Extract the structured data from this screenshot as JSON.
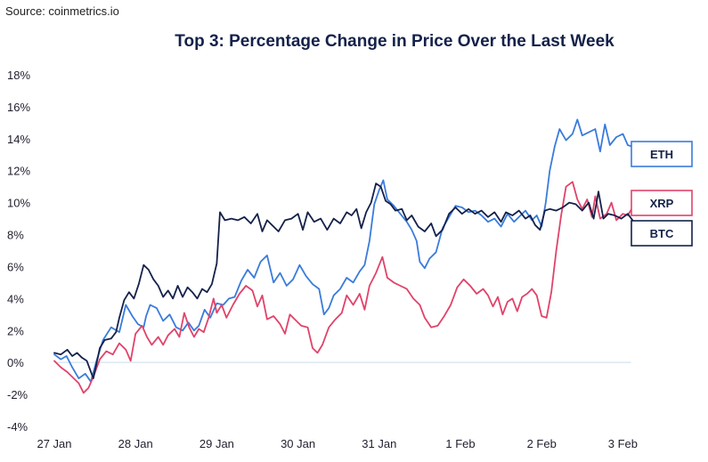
{
  "source": "Source: coinmetrics.io",
  "chart_data": {
    "type": "line",
    "title": "Top 3: Percentage Change in Price Over the Last Week",
    "xlabel": "",
    "ylabel": "",
    "x_ticks": [
      "27 Jan",
      "28 Jan",
      "29 Jan",
      "30 Jan",
      "31 Jan",
      "1 Feb",
      "2 Feb",
      "3 Feb"
    ],
    "xlim": [
      0,
      7.45
    ],
    "ylim": [
      -4,
      18
    ],
    "y_ticks": [
      -4,
      -2,
      0,
      2,
      4,
      6,
      8,
      10,
      12,
      14,
      16,
      18
    ],
    "y_tick_labels": [
      "-4%",
      "-2%",
      "0%",
      "2%",
      "4%",
      "6%",
      "8%",
      "10%",
      "12%",
      "14%",
      "16%",
      "18%"
    ],
    "grid": false,
    "legend": "right",
    "series": [
      {
        "name": "ETH",
        "color": "#3a7bdc",
        "points": [
          [
            0.0,
            0.5
          ],
          [
            0.08,
            0.2
          ],
          [
            0.15,
            0.4
          ],
          [
            0.22,
            -0.3
          ],
          [
            0.3,
            -1.0
          ],
          [
            0.38,
            -0.7
          ],
          [
            0.45,
            -1.2
          ],
          [
            0.52,
            0.1
          ],
          [
            0.6,
            1.4
          ],
          [
            0.7,
            2.2
          ],
          [
            0.8,
            1.9
          ],
          [
            0.88,
            3.6
          ],
          [
            0.96,
            2.9
          ],
          [
            1.03,
            2.4
          ],
          [
            1.1,
            2.2
          ],
          [
            1.13,
            2.9
          ],
          [
            1.18,
            3.6
          ],
          [
            1.26,
            3.4
          ],
          [
            1.34,
            2.6
          ],
          [
            1.42,
            3.0
          ],
          [
            1.5,
            2.2
          ],
          [
            1.58,
            2.0
          ],
          [
            1.65,
            2.5
          ],
          [
            1.72,
            2.0
          ],
          [
            1.78,
            2.3
          ],
          [
            1.85,
            3.3
          ],
          [
            1.92,
            2.8
          ],
          [
            2.0,
            3.7
          ],
          [
            2.08,
            3.6
          ],
          [
            2.15,
            4.0
          ],
          [
            2.22,
            4.1
          ],
          [
            2.3,
            5.1
          ],
          [
            2.38,
            5.8
          ],
          [
            2.46,
            5.3
          ],
          [
            2.54,
            6.3
          ],
          [
            2.62,
            6.7
          ],
          [
            2.7,
            5.0
          ],
          [
            2.78,
            5.6
          ],
          [
            2.86,
            4.8
          ],
          [
            2.94,
            5.2
          ],
          [
            3.02,
            6.1
          ],
          [
            3.1,
            5.4
          ],
          [
            3.18,
            4.9
          ],
          [
            3.26,
            4.6
          ],
          [
            3.32,
            3.0
          ],
          [
            3.38,
            3.4
          ],
          [
            3.44,
            4.2
          ],
          [
            3.52,
            4.6
          ],
          [
            3.6,
            5.3
          ],
          [
            3.68,
            5.0
          ],
          [
            3.76,
            5.7
          ],
          [
            3.82,
            6.1
          ],
          [
            3.88,
            7.6
          ],
          [
            3.94,
            9.9
          ],
          [
            4.0,
            10.8
          ],
          [
            4.05,
            11.4
          ],
          [
            4.1,
            10.2
          ],
          [
            4.18,
            9.8
          ],
          [
            4.26,
            9.3
          ],
          [
            4.34,
            8.8
          ],
          [
            4.4,
            8.3
          ],
          [
            4.46,
            7.6
          ],
          [
            4.5,
            6.3
          ],
          [
            4.56,
            5.9
          ],
          [
            4.62,
            6.5
          ],
          [
            4.7,
            6.9
          ],
          [
            4.78,
            8.4
          ],
          [
            4.86,
            9.1
          ],
          [
            4.94,
            9.8
          ],
          [
            5.02,
            9.7
          ],
          [
            5.1,
            9.4
          ],
          [
            5.18,
            9.5
          ],
          [
            5.26,
            9.2
          ],
          [
            5.34,
            8.8
          ],
          [
            5.42,
            9.0
          ],
          [
            5.5,
            8.5
          ],
          [
            5.58,
            9.3
          ],
          [
            5.66,
            8.8
          ],
          [
            5.74,
            9.2
          ],
          [
            5.8,
            9.5
          ],
          [
            5.88,
            8.9
          ],
          [
            5.94,
            9.2
          ],
          [
            6.0,
            8.5
          ],
          [
            6.05,
            10.0
          ],
          [
            6.1,
            12.0
          ],
          [
            6.16,
            13.5
          ],
          [
            6.22,
            14.6
          ],
          [
            6.3,
            13.9
          ],
          [
            6.38,
            14.3
          ],
          [
            6.44,
            15.2
          ],
          [
            6.5,
            14.2
          ],
          [
            6.58,
            14.4
          ],
          [
            6.66,
            14.6
          ],
          [
            6.72,
            13.2
          ],
          [
            6.78,
            14.9
          ],
          [
            6.84,
            13.6
          ],
          [
            6.92,
            14.1
          ],
          [
            7.0,
            14.3
          ],
          [
            7.06,
            13.6
          ],
          [
            7.12,
            13.5
          ]
        ]
      },
      {
        "name": "XRP",
        "color": "#e0436a",
        "points": [
          [
            0.0,
            0.1
          ],
          [
            0.08,
            -0.3
          ],
          [
            0.16,
            -0.6
          ],
          [
            0.24,
            -1.0
          ],
          [
            0.3,
            -1.3
          ],
          [
            0.36,
            -1.9
          ],
          [
            0.42,
            -1.6
          ],
          [
            0.48,
            -0.9
          ],
          [
            0.56,
            0.2
          ],
          [
            0.64,
            0.7
          ],
          [
            0.72,
            0.5
          ],
          [
            0.8,
            1.2
          ],
          [
            0.88,
            0.8
          ],
          [
            0.94,
            0.1
          ],
          [
            1.0,
            1.8
          ],
          [
            1.08,
            2.3
          ],
          [
            1.14,
            1.6
          ],
          [
            1.2,
            1.1
          ],
          [
            1.28,
            1.6
          ],
          [
            1.34,
            1.1
          ],
          [
            1.4,
            1.7
          ],
          [
            1.48,
            2.1
          ],
          [
            1.54,
            1.6
          ],
          [
            1.6,
            3.1
          ],
          [
            1.66,
            2.2
          ],
          [
            1.72,
            1.6
          ],
          [
            1.78,
            2.1
          ],
          [
            1.84,
            1.9
          ],
          [
            1.9,
            2.8
          ],
          [
            1.96,
            4.0
          ],
          [
            2.0,
            3.1
          ],
          [
            2.06,
            3.6
          ],
          [
            2.12,
            2.8
          ],
          [
            2.2,
            3.6
          ],
          [
            2.28,
            4.3
          ],
          [
            2.36,
            4.8
          ],
          [
            2.44,
            4.5
          ],
          [
            2.5,
            3.5
          ],
          [
            2.56,
            4.2
          ],
          [
            2.62,
            2.7
          ],
          [
            2.7,
            2.9
          ],
          [
            2.78,
            2.4
          ],
          [
            2.84,
            1.8
          ],
          [
            2.9,
            3.0
          ],
          [
            2.98,
            2.6
          ],
          [
            3.04,
            2.3
          ],
          [
            3.12,
            2.2
          ],
          [
            3.18,
            0.9
          ],
          [
            3.24,
            0.6
          ],
          [
            3.3,
            1.1
          ],
          [
            3.38,
            2.2
          ],
          [
            3.46,
            2.7
          ],
          [
            3.54,
            3.1
          ],
          [
            3.6,
            4.2
          ],
          [
            3.68,
            3.6
          ],
          [
            3.76,
            4.3
          ],
          [
            3.82,
            3.3
          ],
          [
            3.88,
            4.8
          ],
          [
            3.96,
            5.6
          ],
          [
            4.04,
            6.6
          ],
          [
            4.1,
            5.3
          ],
          [
            4.18,
            5.0
          ],
          [
            4.26,
            4.8
          ],
          [
            4.34,
            4.6
          ],
          [
            4.42,
            4.0
          ],
          [
            4.5,
            3.6
          ],
          [
            4.56,
            2.8
          ],
          [
            4.64,
            2.2
          ],
          [
            4.72,
            2.3
          ],
          [
            4.8,
            2.9
          ],
          [
            4.88,
            3.6
          ],
          [
            4.96,
            4.7
          ],
          [
            5.04,
            5.2
          ],
          [
            5.12,
            4.8
          ],
          [
            5.2,
            4.3
          ],
          [
            5.28,
            4.6
          ],
          [
            5.34,
            4.2
          ],
          [
            5.4,
            3.5
          ],
          [
            5.46,
            4.1
          ],
          [
            5.52,
            3.0
          ],
          [
            5.58,
            3.8
          ],
          [
            5.64,
            4.0
          ],
          [
            5.7,
            3.2
          ],
          [
            5.76,
            4.1
          ],
          [
            5.82,
            4.3
          ],
          [
            5.88,
            4.6
          ],
          [
            5.94,
            4.2
          ],
          [
            6.0,
            2.9
          ],
          [
            6.06,
            2.8
          ],
          [
            6.12,
            4.4
          ],
          [
            6.18,
            7.0
          ],
          [
            6.24,
            9.2
          ],
          [
            6.3,
            11.0
          ],
          [
            6.38,
            11.3
          ],
          [
            6.44,
            10.2
          ],
          [
            6.5,
            9.6
          ],
          [
            6.56,
            10.2
          ],
          [
            6.62,
            9.1
          ],
          [
            6.66,
            10.4
          ],
          [
            6.72,
            9.0
          ],
          [
            6.8,
            9.3
          ],
          [
            6.86,
            10.0
          ],
          [
            6.92,
            8.9
          ],
          [
            7.0,
            9.3
          ],
          [
            7.06,
            9.2
          ],
          [
            7.12,
            9.7
          ]
        ]
      },
      {
        "name": "BTC",
        "color": "#14214a",
        "points": [
          [
            0.0,
            0.6
          ],
          [
            0.08,
            0.5
          ],
          [
            0.16,
            0.8
          ],
          [
            0.22,
            0.4
          ],
          [
            0.28,
            0.6
          ],
          [
            0.34,
            0.3
          ],
          [
            0.4,
            0.1
          ],
          [
            0.48,
            -1.0
          ],
          [
            0.56,
            0.9
          ],
          [
            0.62,
            1.4
          ],
          [
            0.7,
            1.5
          ],
          [
            0.76,
            1.9
          ],
          [
            0.8,
            2.8
          ],
          [
            0.86,
            3.9
          ],
          [
            0.92,
            4.4
          ],
          [
            0.98,
            4.0
          ],
          [
            1.04,
            4.9
          ],
          [
            1.1,
            6.1
          ],
          [
            1.16,
            5.8
          ],
          [
            1.22,
            5.2
          ],
          [
            1.28,
            4.8
          ],
          [
            1.34,
            4.1
          ],
          [
            1.4,
            4.5
          ],
          [
            1.46,
            4.0
          ],
          [
            1.52,
            4.8
          ],
          [
            1.58,
            4.1
          ],
          [
            1.64,
            4.7
          ],
          [
            1.7,
            4.4
          ],
          [
            1.76,
            4.0
          ],
          [
            1.82,
            4.6
          ],
          [
            1.88,
            4.4
          ],
          [
            1.94,
            4.9
          ],
          [
            2.0,
            6.2
          ],
          [
            2.04,
            9.4
          ],
          [
            2.1,
            8.9
          ],
          [
            2.18,
            9.0
          ],
          [
            2.26,
            8.9
          ],
          [
            2.34,
            9.1
          ],
          [
            2.42,
            8.7
          ],
          [
            2.5,
            9.3
          ],
          [
            2.56,
            8.2
          ],
          [
            2.62,
            8.9
          ],
          [
            2.68,
            8.6
          ],
          [
            2.76,
            8.2
          ],
          [
            2.84,
            8.9
          ],
          [
            2.92,
            9.0
          ],
          [
            3.0,
            9.3
          ],
          [
            3.06,
            8.3
          ],
          [
            3.12,
            9.4
          ],
          [
            3.2,
            8.8
          ],
          [
            3.28,
            9.0
          ],
          [
            3.36,
            8.3
          ],
          [
            3.44,
            9.0
          ],
          [
            3.52,
            8.7
          ],
          [
            3.6,
            9.4
          ],
          [
            3.66,
            9.2
          ],
          [
            3.72,
            9.6
          ],
          [
            3.78,
            8.4
          ],
          [
            3.84,
            9.4
          ],
          [
            3.9,
            10.0
          ],
          [
            3.96,
            11.2
          ],
          [
            4.02,
            11.0
          ],
          [
            4.08,
            10.1
          ],
          [
            4.14,
            9.9
          ],
          [
            4.2,
            9.5
          ],
          [
            4.28,
            9.6
          ],
          [
            4.34,
            8.9
          ],
          [
            4.4,
            9.2
          ],
          [
            4.48,
            8.5
          ],
          [
            4.56,
            8.2
          ],
          [
            4.64,
            8.7
          ],
          [
            4.7,
            7.9
          ],
          [
            4.78,
            8.3
          ],
          [
            4.86,
            9.3
          ],
          [
            4.94,
            9.7
          ],
          [
            5.02,
            9.3
          ],
          [
            5.1,
            9.6
          ],
          [
            5.18,
            9.3
          ],
          [
            5.26,
            9.5
          ],
          [
            5.34,
            9.1
          ],
          [
            5.42,
            9.4
          ],
          [
            5.5,
            8.8
          ],
          [
            5.56,
            9.4
          ],
          [
            5.64,
            9.2
          ],
          [
            5.72,
            9.5
          ],
          [
            5.8,
            9.0
          ],
          [
            5.86,
            9.2
          ],
          [
            5.92,
            8.6
          ],
          [
            5.98,
            8.3
          ],
          [
            6.04,
            9.5
          ],
          [
            6.1,
            9.6
          ],
          [
            6.18,
            9.5
          ],
          [
            6.26,
            9.7
          ],
          [
            6.34,
            10.0
          ],
          [
            6.42,
            9.9
          ],
          [
            6.5,
            9.5
          ],
          [
            6.58,
            10.0
          ],
          [
            6.64,
            9.0
          ],
          [
            6.7,
            10.7
          ],
          [
            6.76,
            9.0
          ],
          [
            6.82,
            9.3
          ],
          [
            6.9,
            9.2
          ],
          [
            6.98,
            9.0
          ],
          [
            7.06,
            9.3
          ],
          [
            7.12,
            8.9
          ]
        ]
      }
    ]
  }
}
